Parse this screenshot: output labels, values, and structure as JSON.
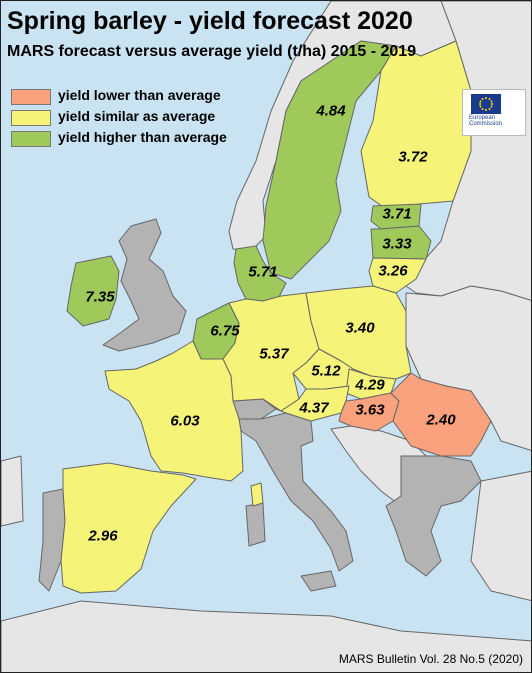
{
  "title": "Spring barley - yield forecast 2020",
  "subtitle": "MARS forecast versus average yield (t/ha) 2015 - 2019",
  "legend": [
    {
      "label": "yield lower than average",
      "color": "#f9a27d"
    },
    {
      "label": "yield similar as average",
      "color": "#f5f378"
    },
    {
      "label": "yield higher than average",
      "color": "#9fc95a"
    }
  ],
  "colors": {
    "sea": "#c9e3f3",
    "other_land": "#b3b3b3",
    "non_eu_land": "#e6e6e6",
    "border": "#666666"
  },
  "logo": {
    "name": "European\nCommission",
    "icon": "eu-flag-icon"
  },
  "countries": [
    {
      "id": "se",
      "value": "4.84",
      "category": "higher"
    },
    {
      "id": "fi",
      "value": "3.72",
      "category": "similar"
    },
    {
      "id": "ee",
      "value": "3.71",
      "category": "higher"
    },
    {
      "id": "lv",
      "value": "3.33",
      "category": "higher"
    },
    {
      "id": "lt",
      "value": "3.26",
      "category": "similar"
    },
    {
      "id": "dk",
      "value": "5.71",
      "category": "higher"
    },
    {
      "id": "ie",
      "value": "7.35",
      "category": "higher"
    },
    {
      "id": "be-nl",
      "value": "6.75",
      "category": "higher"
    },
    {
      "id": "de",
      "value": "5.37",
      "category": "similar"
    },
    {
      "id": "pl",
      "value": "3.40",
      "category": "similar"
    },
    {
      "id": "cz",
      "value": "5.12",
      "category": "similar"
    },
    {
      "id": "sk",
      "value": "4.29",
      "category": "similar"
    },
    {
      "id": "at",
      "value": "4.37",
      "category": "similar"
    },
    {
      "id": "hu",
      "value": "3.63",
      "category": "lower"
    },
    {
      "id": "ro",
      "value": "2.40",
      "category": "lower"
    },
    {
      "id": "fr",
      "value": "6.03",
      "category": "similar"
    },
    {
      "id": "es",
      "value": "2.96",
      "category": "similar"
    }
  ],
  "credit": "MARS Bulletin Vol. 28 No.5 (2020)"
}
